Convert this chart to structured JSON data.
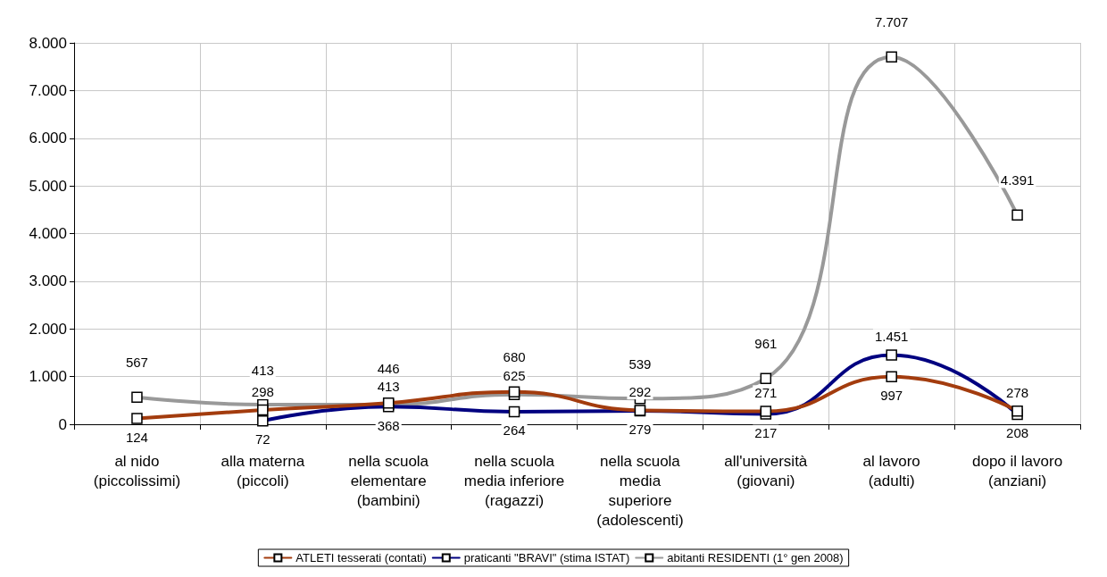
{
  "chart_data": {
    "type": "line",
    "categories": [
      "al nido\n(piccolissimi)",
      "alla materna\n(piccoli)",
      "nella scuola\nelementare\n(bambini)",
      "nella scuola\nmedia inferiore\n(ragazzi)",
      "nella scuola\nmedia\nsuperiore\n(adolescenti)",
      "all'università\n(giovani)",
      "al lavoro\n(adulti)",
      "dopo il lavoro\n(anziani)"
    ],
    "series": [
      {
        "name": "ATLETI tesserati (contati)",
        "color": "#a33c0e",
        "values": [
          124,
          298,
          446,
          680,
          292,
          271,
          997,
          278
        ],
        "value_labels": [
          "124",
          "298",
          "446",
          "680",
          "292",
          "271",
          "997",
          "278"
        ]
      },
      {
        "name": "praticanti \"BRAVI\" (stima ISTAT)",
        "color": "#000080",
        "values": [
          null,
          72,
          368,
          264,
          279,
          217,
          1451,
          208
        ],
        "value_labels": [
          null,
          "72",
          "368",
          "264",
          "279",
          "217",
          "1.451",
          "208"
        ]
      },
      {
        "name": "abitanti RESIDENTI (1° gen 2008)",
        "color": "#999999",
        "values": [
          567,
          413,
          413,
          625,
          539,
          961,
          7707,
          4391
        ],
        "value_labels": [
          "567",
          "413",
          "413",
          "625",
          "539",
          "961",
          "7.707",
          "4.391"
        ]
      }
    ],
    "ylim": [
      0,
      8000
    ],
    "yticks": [
      0,
      {
        "value": 1000,
        "label": "1.000"
      },
      {
        "value": 2000,
        "label": "2.000"
      },
      {
        "value": 3000,
        "label": "3.000"
      },
      {
        "value": 4000,
        "label": "4.000"
      },
      {
        "value": 5000,
        "label": "5.000"
      },
      {
        "value": 6000,
        "label": "6.000"
      },
      {
        "value": 7000,
        "label": "7.000"
      },
      {
        "value": 8000,
        "label": "8.000"
      }
    ],
    "grid": true,
    "legend": "bottom",
    "marker": "square",
    "line_style": "solid"
  }
}
